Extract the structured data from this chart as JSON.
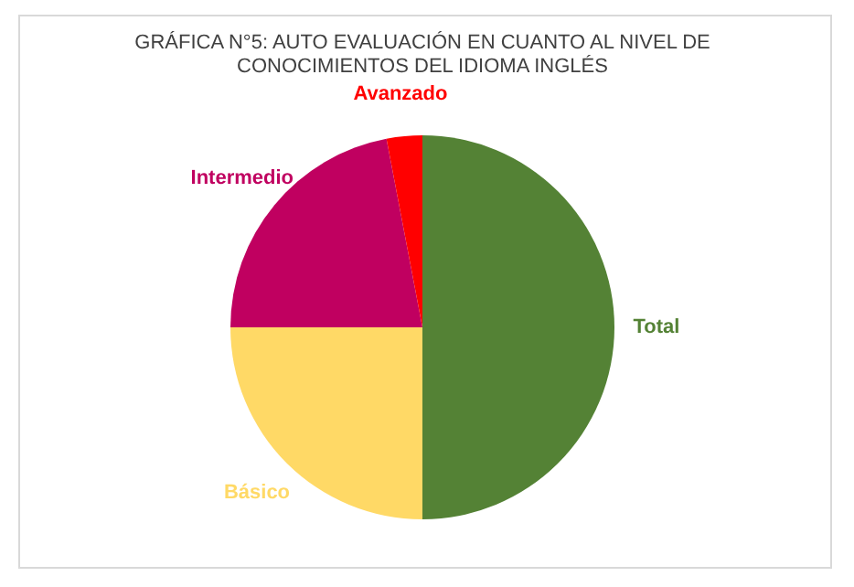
{
  "chart_data": {
    "type": "pie",
    "title": "GRÁFICA N°5: AUTO EVALUACIÓN EN CUANTO AL NIVEL DE CONOCIMIENTOS DEL IDIOMA INGLÉS",
    "categories": [
      "Total",
      "Básico",
      "Intermedio",
      "Avanzado"
    ],
    "values": [
      50,
      25,
      22,
      3
    ],
    "colors": [
      "#548235",
      "#ffd966",
      "#c00060",
      "#ff0000"
    ],
    "legend": false
  }
}
